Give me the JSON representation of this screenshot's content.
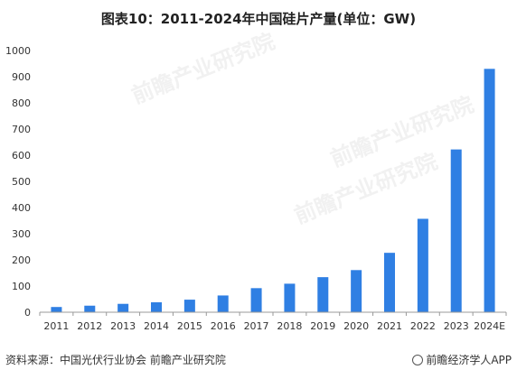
{
  "title": "图表10：2011-2024年中国硅片产量(单位：GW)",
  "source": "资料来源：中国光伏行业协会 前瞻产业研究院",
  "brand": "前瞻经济学人APP",
  "watermark": "前瞻产业研究院",
  "colors": {
    "bar": "#2f7fe3",
    "axis": "#999999"
  },
  "chart_data": {
    "type": "bar",
    "title": "图表10：2011-2024年中国硅片产量(单位：GW)",
    "categories": [
      "2011",
      "2012",
      "2013",
      "2014",
      "2015",
      "2016",
      "2017",
      "2018",
      "2019",
      "2020",
      "2021",
      "2022",
      "2023",
      "2024E"
    ],
    "values": [
      20,
      25,
      32,
      38,
      48,
      64,
      92,
      109,
      134,
      161,
      227,
      357,
      622,
      930
    ],
    "ylim": [
      0,
      1000
    ],
    "yticks": [
      0,
      100,
      200,
      300,
      400,
      500,
      600,
      700,
      800,
      900,
      1000
    ],
    "grid": false,
    "legend": "none"
  }
}
